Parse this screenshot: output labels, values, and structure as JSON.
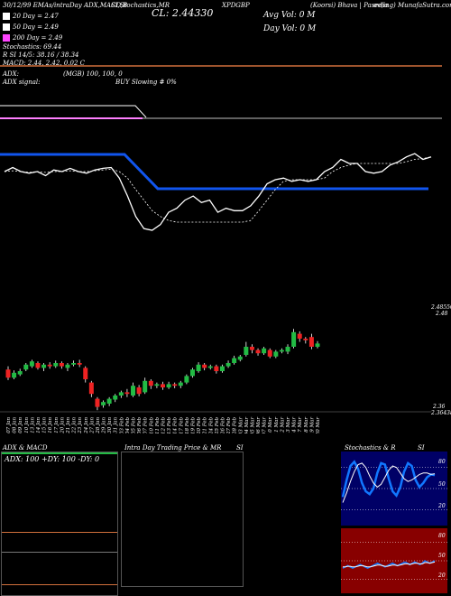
{
  "header": {
    "line1_left": "30/12/99 EMAs/intraDay ADX,MACD,B",
    "line1_mid": "SI,Stochastics,MR",
    "line1_close": "CL: 2.44330",
    "line1_ticker": "XPDGBP",
    "line1_right_a": "(Koorsi) Bhava | Pasedia",
    "line1_right_b": "ev(ing) MunafaSutra.com",
    "avg_vol": "Avg Vol: 0  M",
    "day_vol": "Day Vol: 0   M"
  },
  "legend": [
    {
      "label": "20 Day = 2.47",
      "color": "#ffffff"
    },
    {
      "label": "50 Day = 2.49",
      "color": "#ffffff"
    },
    {
      "label": "200 Day = 2.49",
      "color": "#ff44ff"
    }
  ],
  "stats": {
    "stoch": "Stochastics: 69.44",
    "si": "R          SI 14/5: 38.16  / 38.34",
    "macd": "MACD: 2.44, 2.42, 0.02  C"
  },
  "adx_panel": {
    "adx": "ADX:",
    "mid": "(MGB) 100, 100, 0",
    "signal": "ADX  signal:",
    "buy": "BUY Slowing # 0%"
  },
  "candle_panel": {
    "top_label": "2.48550",
    "top_label2": "2.48",
    "bottom_label": "2.36",
    "bottom_label2": "2.36438"
  },
  "date_labels": [
    "07 Jan",
    "08 Jan",
    "09 Jan",
    "10 Jan",
    "13 Jan",
    "14 Jan",
    "15 Jan",
    "16 Jan",
    "17 Jan",
    "20 Jan",
    "21 Jan",
    "22 Jan",
    "23 Jan",
    "24 Jan",
    "27 Jan",
    "28 Jan",
    "29 Jan",
    "30 Jan",
    "31 Jan",
    "03 Feb",
    "04 Feb",
    "05 Feb",
    "06 Feb",
    "07 Feb",
    "10 Feb",
    "11 Feb",
    "12 Feb",
    "13 Feb",
    "14 Feb",
    "17 Feb",
    "18 Feb",
    "19 Feb",
    "20 Feb",
    "21 Feb",
    "24 Feb",
    "25 Feb",
    "26 Feb",
    "27 Feb",
    "28 Feb",
    "03 Mar",
    "04 Mar",
    "05 Mar",
    "06 Mar",
    "07 Mar",
    "10 Mar",
    "11 Mar",
    "12 Mar",
    "13 Mar",
    "14 Mar",
    "17 Mar",
    "18 Mar",
    "19 Mar",
    "20 Mar"
  ],
  "bottom_panels": {
    "p1_title": "ADX  & MACD",
    "p1_stats": "ADX: 100  +DY: 100  -DY: 0",
    "p2_title": "Intra Day Trading Price  & MR",
    "p2_si": "SI",
    "p3_title": "Stochastics & R",
    "p3_si": "SI",
    "stoch_ticks": [
      "80",
      "50",
      "20"
    ],
    "rsi_ticks": [
      "80",
      "50",
      "20"
    ]
  },
  "colors": {
    "orange": "#d2703c",
    "blue": "#1155ee",
    "magenta": "#ff33ff",
    "green": "#22bb44",
    "red": "#ee2222",
    "stoch_bg": "#000066",
    "rsi_bg": "#880000"
  },
  "chart_data": [
    {
      "type": "line",
      "panel": "price-overlay",
      "series": [
        {
          "values": [
            2.44,
            2.445,
            2.44,
            2.438,
            2.44,
            2.435,
            2.442,
            2.44,
            2.444,
            2.44,
            2.438,
            2.442,
            2.444,
            2.445,
            2.432,
            2.41,
            2.385,
            2.37,
            2.368,
            2.375,
            2.39,
            2.395,
            2.405,
            2.41,
            2.402,
            2.405,
            2.39,
            2.395,
            2.392,
            2.392,
            2.398,
            2.41,
            2.425,
            2.43,
            2.432,
            2.428,
            2.43,
            2.428,
            2.43,
            2.44,
            2.445,
            2.455,
            2.45,
            2.45,
            2.44,
            2.438,
            2.44,
            2.448,
            2.452,
            2.458,
            2.462,
            2.455,
            2.458
          ]
        },
        {
          "values": [
            2.44,
            2.441,
            2.44,
            2.439,
            2.44,
            2.439,
            2.44,
            2.44,
            2.441,
            2.44,
            2.44,
            2.441,
            2.442,
            2.443,
            2.44,
            2.432,
            2.418,
            2.405,
            2.392,
            2.385,
            2.38,
            2.378,
            2.378,
            2.378,
            2.378,
            2.378,
            2.378,
            2.378,
            2.378,
            2.378,
            2.38,
            2.392,
            2.405,
            2.418,
            2.428,
            2.43,
            2.43,
            2.43,
            2.43,
            2.432,
            2.44,
            2.445,
            2.448,
            2.45,
            2.45,
            2.45,
            2.45,
            2.45,
            2.45,
            2.452,
            2.455,
            2.456,
            2.458
          ]
        }
      ]
    },
    {
      "type": "bar",
      "panel": "candlestick",
      "ylim": [
        2.36,
        2.5
      ],
      "candles": [
        {
          "o": 2.412,
          "c": 2.402,
          "h": 2.416,
          "l": 2.399
        },
        {
          "o": 2.402,
          "c": 2.408,
          "h": 2.411,
          "l": 2.4
        },
        {
          "o": 2.406,
          "c": 2.41,
          "h": 2.413,
          "l": 2.404
        },
        {
          "o": 2.412,
          "c": 2.418,
          "h": 2.42,
          "l": 2.41
        },
        {
          "o": 2.416,
          "c": 2.422,
          "h": 2.424,
          "l": 2.414
        },
        {
          "o": 2.42,
          "c": 2.414,
          "h": 2.422,
          "l": 2.412
        },
        {
          "o": 2.414,
          "c": 2.418,
          "h": 2.42,
          "l": 2.41
        },
        {
          "o": 2.418,
          "c": 2.416,
          "h": 2.421,
          "l": 2.413
        },
        {
          "o": 2.416,
          "c": 2.42,
          "h": 2.423,
          "l": 2.414
        },
        {
          "o": 2.42,
          "c": 2.416,
          "h": 2.422,
          "l": 2.413
        },
        {
          "o": 2.414,
          "c": 2.418,
          "h": 2.42,
          "l": 2.41
        },
        {
          "o": 2.418,
          "c": 2.42,
          "h": 2.423,
          "l": 2.416
        },
        {
          "o": 2.42,
          "c": 2.418,
          "h": 2.424,
          "l": 2.415
        },
        {
          "o": 2.414,
          "c": 2.4,
          "h": 2.416,
          "l": 2.396
        },
        {
          "o": 2.396,
          "c": 2.382,
          "h": 2.398,
          "l": 2.378
        },
        {
          "o": 2.376,
          "c": 2.366,
          "h": 2.378,
          "l": 2.362
        },
        {
          "o": 2.368,
          "c": 2.372,
          "h": 2.374,
          "l": 2.365
        },
        {
          "o": 2.37,
          "c": 2.376,
          "h": 2.378,
          "l": 2.367
        },
        {
          "o": 2.375,
          "c": 2.38,
          "h": 2.382,
          "l": 2.372
        },
        {
          "o": 2.38,
          "c": 2.384,
          "h": 2.386,
          "l": 2.377
        },
        {
          "o": 2.384,
          "c": 2.382,
          "h": 2.388,
          "l": 2.378
        },
        {
          "o": 2.38,
          "c": 2.392,
          "h": 2.396,
          "l": 2.378
        },
        {
          "o": 2.39,
          "c": 2.382,
          "h": 2.393,
          "l": 2.379
        },
        {
          "o": 2.384,
          "c": 2.398,
          "h": 2.402,
          "l": 2.382
        },
        {
          "o": 2.398,
          "c": 2.392,
          "h": 2.4,
          "l": 2.388
        },
        {
          "o": 2.392,
          "c": 2.394,
          "h": 2.396,
          "l": 2.389
        },
        {
          "o": 2.394,
          "c": 2.39,
          "h": 2.397,
          "l": 2.387
        },
        {
          "o": 2.39,
          "c": 2.394,
          "h": 2.397,
          "l": 2.388
        },
        {
          "o": 2.394,
          "c": 2.392,
          "h": 2.396,
          "l": 2.389
        },
        {
          "o": 2.392,
          "c": 2.396,
          "h": 2.398,
          "l": 2.389
        },
        {
          "o": 2.396,
          "c": 2.404,
          "h": 2.406,
          "l": 2.394
        },
        {
          "o": 2.404,
          "c": 2.412,
          "h": 2.414,
          "l": 2.402
        },
        {
          "o": 2.41,
          "c": 2.418,
          "h": 2.421,
          "l": 2.408
        },
        {
          "o": 2.418,
          "c": 2.414,
          "h": 2.42,
          "l": 2.411
        },
        {
          "o": 2.414,
          "c": 2.416,
          "h": 2.418,
          "l": 2.412
        },
        {
          "o": 2.416,
          "c": 2.41,
          "h": 2.418,
          "l": 2.407
        },
        {
          "o": 2.41,
          "c": 2.416,
          "h": 2.418,
          "l": 2.408
        },
        {
          "o": 2.416,
          "c": 2.42,
          "h": 2.423,
          "l": 2.414
        },
        {
          "o": 2.42,
          "c": 2.426,
          "h": 2.429,
          "l": 2.418
        },
        {
          "o": 2.424,
          "c": 2.428,
          "h": 2.43,
          "l": 2.422
        },
        {
          "o": 2.43,
          "c": 2.44,
          "h": 2.446,
          "l": 2.428
        },
        {
          "o": 2.44,
          "c": 2.436,
          "h": 2.443,
          "l": 2.432
        },
        {
          "o": 2.436,
          "c": 2.432,
          "h": 2.438,
          "l": 2.429
        },
        {
          "o": 2.432,
          "c": 2.438,
          "h": 2.44,
          "l": 2.43
        },
        {
          "o": 2.436,
          "c": 2.428,
          "h": 2.438,
          "l": 2.426
        },
        {
          "o": 2.428,
          "c": 2.434,
          "h": 2.436,
          "l": 2.426
        },
        {
          "o": 2.434,
          "c": 2.436,
          "h": 2.438,
          "l": 2.432
        },
        {
          "o": 2.434,
          "c": 2.44,
          "h": 2.443,
          "l": 2.431
        },
        {
          "o": 2.44,
          "c": 2.458,
          "h": 2.462,
          "l": 2.438
        },
        {
          "o": 2.456,
          "c": 2.45,
          "h": 2.459,
          "l": 2.446
        },
        {
          "o": 2.45,
          "c": 2.448,
          "h": 2.452,
          "l": 2.444
        },
        {
          "o": 2.452,
          "c": 2.44,
          "h": 2.456,
          "l": 2.437
        },
        {
          "o": 2.44,
          "c": 2.444,
          "h": 2.447,
          "l": 2.438
        }
      ]
    },
    {
      "type": "line",
      "panel": "stochastics",
      "ylim": [
        0,
        100
      ],
      "series": [
        {
          "values": [
            38,
            62,
            82,
            88,
            78,
            58,
            46,
            42,
            50,
            72,
            86,
            84,
            64,
            46,
            40,
            52,
            74,
            86,
            82,
            62,
            52,
            58,
            66,
            70,
            69
          ]
        },
        {
          "values": [
            30,
            44,
            60,
            74,
            84,
            86,
            80,
            68,
            58,
            52,
            56,
            66,
            76,
            82,
            80,
            72,
            64,
            60,
            62,
            66,
            70,
            72,
            72,
            70,
            71
          ]
        }
      ]
    },
    {
      "type": "line",
      "panel": "rsi",
      "ylim": [
        0,
        100
      ],
      "series": [
        {
          "values": [
            38,
            40,
            42,
            40,
            38,
            40,
            42,
            44,
            42,
            40,
            38,
            40,
            42,
            44,
            46,
            44,
            42,
            40,
            42,
            44,
            46,
            44,
            42,
            44,
            46,
            48,
            46,
            44,
            46,
            48,
            46,
            44,
            46,
            50,
            48,
            46,
            48,
            50
          ]
        },
        {
          "values": [
            40,
            40,
            41,
            41,
            40,
            40,
            41,
            42,
            42,
            41,
            40,
            40,
            41,
            42,
            43,
            43,
            42,
            41,
            41,
            42,
            43,
            43,
            42,
            43,
            44,
            45,
            45,
            44,
            45,
            46,
            46,
            45,
            45,
            47,
            47,
            46,
            47,
            48
          ]
        }
      ]
    }
  ]
}
